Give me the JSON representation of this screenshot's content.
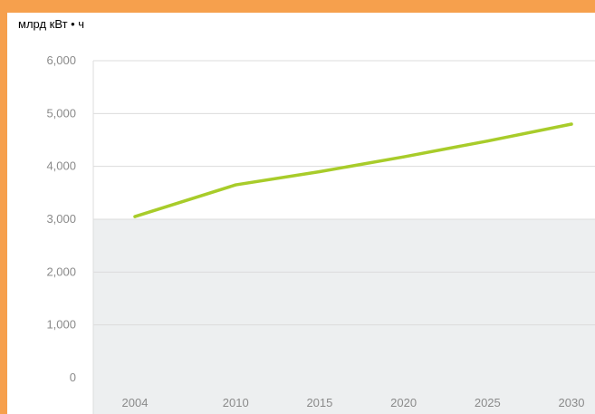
{
  "colors": {
    "frame": "#f6a04d",
    "line": "#a8cc2a",
    "band": "#edeff0",
    "grid": "#dcdcdc",
    "tick_text": "#8a8a8a"
  },
  "chart_data": {
    "type": "line",
    "ylabel": "млрд кВт • ч",
    "x": [
      2004,
      2010,
      2015,
      2020,
      2025,
      2030
    ],
    "x_tick_labels": [
      "2004",
      "2010",
      "2015",
      "2020",
      "2025",
      "2030"
    ],
    "y_tick_labels": [
      "0",
      "1,000",
      "2,000",
      "3,000",
      "4,000",
      "5,000",
      "6,000"
    ],
    "y_ticks": [
      0,
      1000,
      2000,
      3000,
      4000,
      5000,
      6000
    ],
    "ylim": [
      0,
      6000
    ],
    "series": [
      {
        "values": [
          3050,
          3650,
          3900,
          4180,
          4480,
          4800
        ]
      }
    ],
    "grid": true,
    "shaded_band": [
      0,
      3000
    ]
  }
}
